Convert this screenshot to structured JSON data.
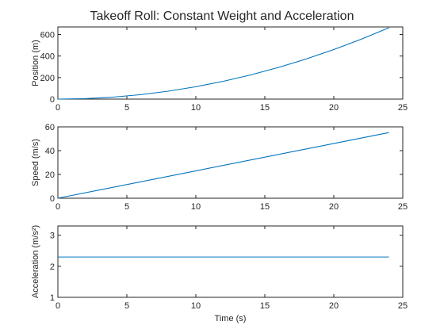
{
  "figure_title": "Takeoff Roll: Constant Weight and Acceleration",
  "colors": {
    "series": "#0072bd",
    "axes": "#262626",
    "background": "#ffffff"
  },
  "chart_data": [
    {
      "type": "line",
      "ylabel": "Position (m)",
      "xlabel": "",
      "xlim": [
        0,
        25
      ],
      "ylim": [
        0,
        670
      ],
      "xticks": [
        0,
        5,
        10,
        15,
        20,
        25
      ],
      "yticks": [
        0,
        200,
        400,
        600
      ],
      "grid": false,
      "series": [
        {
          "x": [
            0,
            2,
            4,
            6,
            8,
            10,
            12,
            14,
            16,
            18,
            20,
            22,
            24
          ],
          "y": [
            0,
            4.6,
            18.4,
            41.4,
            73.6,
            115,
            165.6,
            225.4,
            294.4,
            372.6,
            460,
            556.6,
            662.4
          ]
        }
      ]
    },
    {
      "type": "line",
      "ylabel": "Speed (m/s)",
      "xlabel": "",
      "xlim": [
        0,
        25
      ],
      "ylim": [
        0,
        60
      ],
      "xticks": [
        0,
        5,
        10,
        15,
        20,
        25
      ],
      "yticks": [
        0,
        20,
        40,
        60
      ],
      "grid": false,
      "series": [
        {
          "x": [
            0,
            24
          ],
          "y": [
            0,
            55.2
          ]
        }
      ]
    },
    {
      "type": "line",
      "ylabel": "Acceleration (m/s²)",
      "xlabel": "Time (s)",
      "xlim": [
        0,
        25
      ],
      "ylim": [
        1,
        3.3
      ],
      "xticks": [
        0,
        5,
        10,
        15,
        20,
        25
      ],
      "yticks": [
        1,
        2,
        3
      ],
      "grid": false,
      "series": [
        {
          "x": [
            0,
            24
          ],
          "y": [
            2.3,
            2.3
          ]
        }
      ]
    }
  ]
}
